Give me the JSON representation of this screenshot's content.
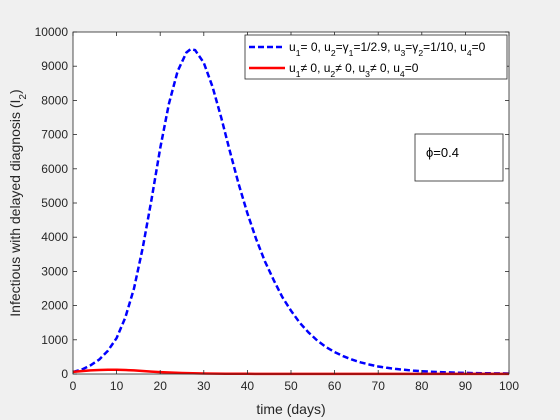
{
  "chart_data": {
    "type": "line",
    "title": "",
    "xlabel": "time (days)",
    "ylabel": "Infectious with delayed diagnosis (I₂)",
    "xlim": [
      0,
      100
    ],
    "ylim": [
      0,
      10000
    ],
    "xticks": [
      0,
      10,
      20,
      30,
      40,
      50,
      60,
      70,
      80,
      90,
      100
    ],
    "yticks": [
      0,
      1000,
      2000,
      3000,
      4000,
      5000,
      6000,
      7000,
      8000,
      9000,
      10000
    ],
    "grid": false,
    "legend_position": "top-right",
    "series": [
      {
        "name": "u₁= 0, u₂=γ₁=1/2.9, u₃=γ₂=1/10, u₄=0",
        "color": "#0000ff",
        "style": "dashed",
        "x": [
          0,
          2,
          4,
          6,
          8,
          10,
          12,
          14,
          16,
          18,
          20,
          22,
          24,
          26,
          27,
          28,
          30,
          32,
          34,
          36,
          38,
          40,
          42,
          44,
          46,
          48,
          50,
          52,
          54,
          56,
          58,
          60,
          62,
          64,
          66,
          68,
          70,
          72,
          74,
          76,
          78,
          80,
          82,
          84,
          86,
          88,
          90,
          92,
          94,
          96,
          98,
          100
        ],
        "y": [
          60,
          130,
          250,
          420,
          680,
          1050,
          1650,
          2500,
          3700,
          5100,
          6600,
          7900,
          8850,
          9400,
          9500,
          9470,
          9100,
          8400,
          7500,
          6500,
          5550,
          4700,
          3950,
          3300,
          2750,
          2250,
          1850,
          1500,
          1220,
          980,
          790,
          640,
          520,
          420,
          340,
          275,
          220,
          180,
          150,
          122,
          100,
          82,
          68,
          56,
          46,
          38,
          32,
          27,
          23,
          20,
          17,
          15
        ]
      },
      {
        "name": "u₁≠ 0, u₂≠ 0, u₃≠ 0, u₄=0",
        "color": "#ff0000",
        "style": "solid",
        "x": [
          0,
          2,
          4,
          6,
          8,
          10,
          12,
          14,
          16,
          18,
          20,
          25,
          30,
          35,
          40,
          50,
          60,
          70,
          80,
          90,
          100
        ],
        "y": [
          60,
          85,
          105,
          118,
          125,
          125,
          118,
          105,
          88,
          70,
          55,
          30,
          15,
          8,
          5,
          3,
          2,
          2,
          2,
          2,
          2
        ]
      }
    ],
    "annotation": {
      "text": "ϕ=0.4"
    }
  },
  "legend": {
    "entries": [
      {
        "parts": [
          [
            "u",
            "n"
          ],
          [
            "1",
            "s"
          ],
          [
            "= 0, u",
            "n"
          ],
          [
            "2",
            "s"
          ],
          [
            "=γ",
            "n"
          ],
          [
            "1",
            "s"
          ],
          [
            "=1/2.9, u",
            "n"
          ],
          [
            "3",
            "s"
          ],
          [
            "=γ",
            "n"
          ],
          [
            "2",
            "s"
          ],
          [
            "=1/10, u",
            "n"
          ],
          [
            "4",
            "s"
          ],
          [
            "=0",
            "n"
          ]
        ]
      },
      {
        "parts": [
          [
            "u",
            "n"
          ],
          [
            "1",
            "s"
          ],
          [
            "≠ 0, u",
            "n"
          ],
          [
            "2",
            "s"
          ],
          [
            "≠ 0, u",
            "n"
          ],
          [
            "3",
            "s"
          ],
          [
            "≠ 0, u",
            "n"
          ],
          [
            "4",
            "s"
          ],
          [
            "=0",
            "n"
          ]
        ]
      }
    ]
  },
  "ylabel_parts": [
    [
      "Infectious with delayed diagnosis (I",
      "n"
    ],
    [
      "2",
      "s"
    ],
    [
      ")",
      "n"
    ]
  ]
}
